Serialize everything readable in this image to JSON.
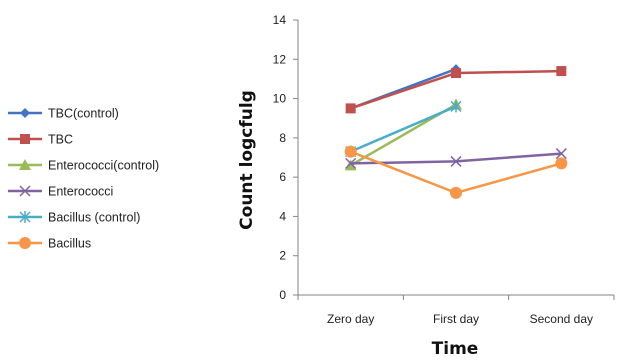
{
  "chart_data": {
    "type": "line",
    "title": "",
    "xlabel": "Time",
    "ylabel": "Count logcfulg",
    "categories": [
      "Zero day",
      "First day",
      "Second day"
    ],
    "ylim": [
      0,
      14
    ],
    "yticks": [
      "0",
      "2",
      "4",
      "6",
      "8",
      "10",
      "12",
      "14"
    ],
    "grid": false,
    "legend_position": "left",
    "series": [
      {
        "name": "TBC(control)",
        "values": [
          9.5,
          11.5,
          null
        ],
        "color": "#4472C4",
        "marker": "diamond"
      },
      {
        "name": "TBC",
        "values": [
          9.5,
          11.3,
          11.4
        ],
        "color": "#C0504D",
        "marker": "square"
      },
      {
        "name": "Enterococci(control)",
        "values": [
          6.6,
          9.7,
          null
        ],
        "color": "#9BBB59",
        "marker": "triangle"
      },
      {
        "name": "Enterococci",
        "values": [
          6.7,
          6.8,
          7.2
        ],
        "color": "#8064A2",
        "marker": "x"
      },
      {
        "name": "Bacillus (control)",
        "values": [
          7.3,
          9.6,
          null
        ],
        "color": "#4BACC6",
        "marker": "star"
      },
      {
        "name": "Bacillus",
        "values": [
          7.3,
          5.2,
          6.7
        ],
        "color": "#F79646",
        "marker": "circle"
      }
    ]
  }
}
